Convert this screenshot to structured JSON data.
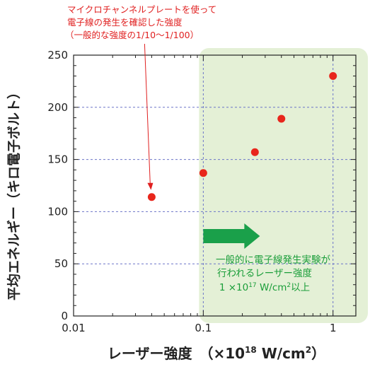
{
  "chart_data": {
    "type": "scatter",
    "xscale": "log",
    "xlim": [
      0.01,
      1.5
    ],
    "ylim": [
      0,
      250
    ],
    "xticks": [
      0.01,
      0.1,
      1
    ],
    "xtick_labels": [
      "0.01",
      "0.1",
      "1"
    ],
    "yticks": [
      0,
      50,
      100,
      150,
      200,
      250
    ],
    "ytick_labels": [
      "0",
      "50",
      "100",
      "150",
      "200",
      "250"
    ],
    "grid": true,
    "xlabel": "レーザー強度　（×10",
    "xlabel_sup": "18",
    "xlabel_unit": " W/cm",
    "xlabel_sup2": "2",
    "xlabel_end": "）",
    "ylabel": "平均エネルギー（キロ電子ボルト）",
    "point_color": "#e8261c",
    "series": [
      {
        "x": [
          0.04,
          0.1,
          0.25,
          0.4,
          1.0
        ],
        "y": [
          114,
          137,
          157,
          189,
          230
        ]
      }
    ],
    "shaded_region": {
      "x_start": 0.1,
      "color": "#e4f0d6"
    },
    "annotation_red": {
      "lines": [
        "マイクロチャンネルプレートを使って",
        "電子線の発生を確認した強度",
        "（一般的な強度の1/10～1/100）"
      ],
      "target_x": 0.04,
      "color": "#e02020"
    },
    "annotation_green": {
      "line1": "一般的に電子線発生実験が",
      "line2": "行われるレーザー強度",
      "line3_pre": "1 ×10",
      "line3_sup": "17",
      "line3_mid": " W/cm",
      "line3_sup2": "2",
      "line3_end": "以上",
      "arrow_color": "#1aa04a",
      "text_color": "#1b9e3a"
    }
  }
}
